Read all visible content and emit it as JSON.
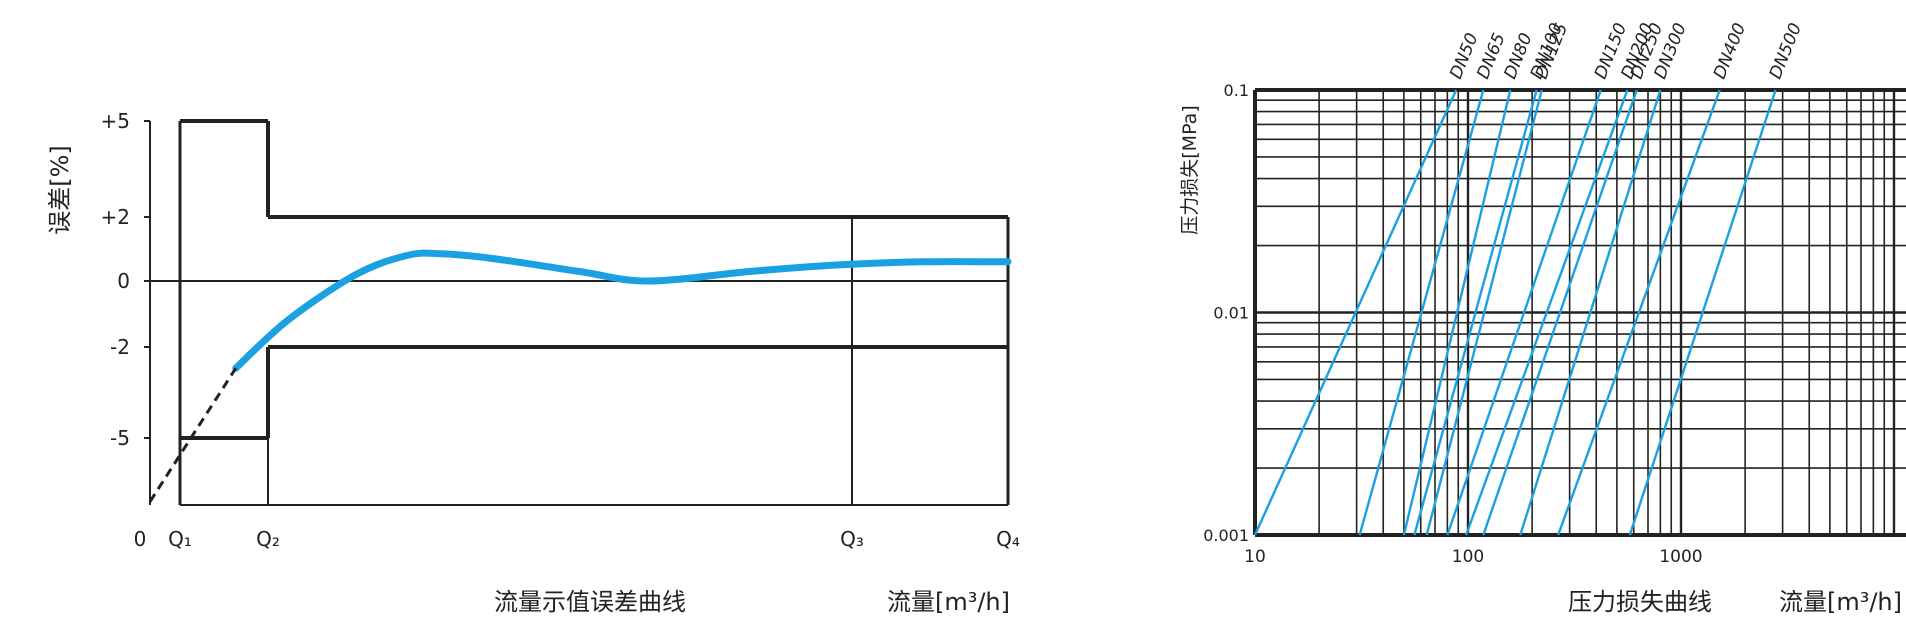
{
  "chart_data": [
    {
      "type": "line",
      "caption": "流量示值误差曲线",
      "xlabel": "流量[m³/h]",
      "ylabel": "误差[%]",
      "x_ticks": [
        "0",
        "Q₁",
        "Q₂",
        "Q₃",
        "Q₄"
      ],
      "y_ticks": [
        "+5",
        "+2",
        "0",
        "-2",
        "-5"
      ],
      "ylim": [
        -7,
        5
      ],
      "grid": false,
      "colors": {
        "curve": "#1ba0e2",
        "frame": "#222222"
      },
      "limits": {
        "upper": [
          {
            "from": "Q₁",
            "to": "Q₂",
            "value": 5
          },
          {
            "from": "Q₂",
            "to": "Q₄",
            "value": 2
          }
        ],
        "lower": [
          {
            "from": "Q₁",
            "to": "Q₂",
            "value": -5
          },
          {
            "from": "Q₂",
            "to": "Q₄",
            "value": -2
          }
        ]
      },
      "series": [
        {
          "style": "solid",
          "x": [
            0.1,
            0.16,
            0.24,
            0.3,
            0.34,
            0.4,
            0.5,
            0.58,
            0.7,
            0.8,
            0.9,
            1.0
          ],
          "y": [
            -2.7,
            -1.2,
            0.2,
            0.8,
            0.85,
            0.7,
            0.3,
            0.0,
            0.3,
            0.5,
            0.6,
            0.6
          ]
        },
        {
          "style": "dashed",
          "x": [
            0.0,
            0.1
          ],
          "y": [
            -6.9,
            -2.7
          ]
        }
      ]
    },
    {
      "type": "line",
      "caption": "压力损失曲线",
      "xlabel": "流量[m³/h]",
      "ylabel": "压力损失[MPa]",
      "x_scale": "log",
      "y_scale": "log",
      "xlim": [
        10,
        10000
      ],
      "ylim": [
        0.001,
        0.1
      ],
      "x_ticks": [
        "10",
        "100",
        "1000"
      ],
      "y_ticks": [
        "0.1",
        "0.01",
        "0.001"
      ],
      "grid": true,
      "colors": {
        "line": "#1ba0e2",
        "grid": "#222222"
      },
      "series": [
        {
          "name": "DN50",
          "x": [
            10.0,
            88.0
          ]
        },
        {
          "name": "DN65",
          "x": [
            31.0,
            118.0
          ]
        },
        {
          "name": "DN80",
          "x": [
            50.0,
            158.0
          ]
        },
        {
          "name": "DN100",
          "x": [
            56.0,
            210.0
          ]
        },
        {
          "name": "DN125",
          "x": [
            64.0,
            222.0
          ]
        },
        {
          "name": "DN150",
          "x": [
            80.0,
            420.0
          ]
        },
        {
          "name": "DN200",
          "x": [
            98.0,
            560.0
          ]
        },
        {
          "name": "DN250",
          "x": [
            118.0,
            620.0
          ]
        },
        {
          "name": "DN300",
          "x": [
            176.0,
            800.0
          ]
        },
        {
          "name": "DN400",
          "x": [
            265.0,
            1520.0
          ]
        },
        {
          "name": "DN500",
          "x": [
            575.0,
            2780.0
          ]
        }
      ]
    }
  ]
}
